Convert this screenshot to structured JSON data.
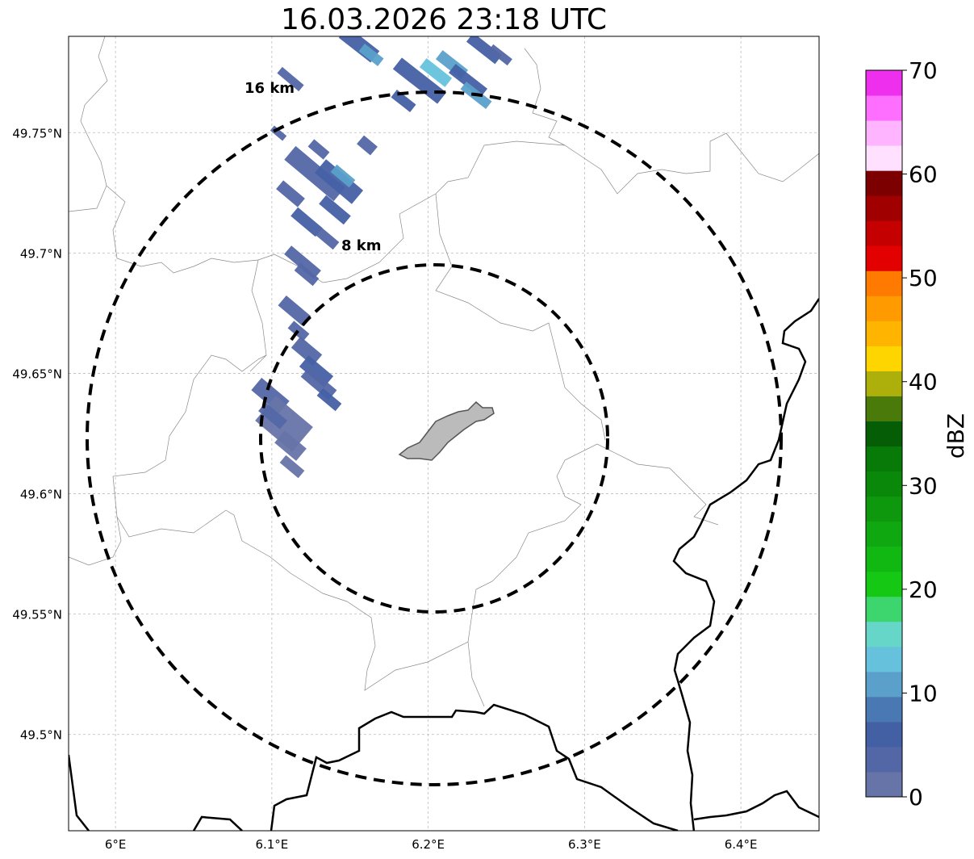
{
  "title": "16.03.2026 23:18 UTC",
  "map": {
    "lon_ticks": [
      {
        "value": 6.0,
        "label": "6°E"
      },
      {
        "value": 6.1,
        "label": "6.1°E"
      },
      {
        "value": 6.2,
        "label": "6.2°E"
      },
      {
        "value": 6.3,
        "label": "6.3°E"
      },
      {
        "value": 6.4,
        "label": "6.4°E"
      }
    ],
    "lat_ticks": [
      {
        "value": 49.75,
        "label": "49.75°N"
      },
      {
        "value": 49.7,
        "label": "49.7°N"
      },
      {
        "value": 49.65,
        "label": "49.65°N"
      },
      {
        "value": 49.6,
        "label": "49.6°N"
      },
      {
        "value": 49.55,
        "label": "49.55°N"
      },
      {
        "value": 49.5,
        "label": "49.5°N"
      }
    ],
    "lon_range": [
      5.97,
      6.45
    ],
    "lat_range": [
      49.46,
      49.79
    ],
    "gridlines": true,
    "range_rings": [
      {
        "radius_km": 8,
        "label": "8 km"
      },
      {
        "radius_km": 16,
        "label": "16 km"
      }
    ],
    "radar_center": {
      "lon": 6.202,
      "lat": 49.623
    }
  },
  "colorbar": {
    "label": "dBZ",
    "ticks": [
      "0",
      "10",
      "20",
      "30",
      "40",
      "50",
      "60",
      "70"
    ],
    "min": 0,
    "max": 70,
    "colors": [
      "#6674a8",
      "#5367a6",
      "#4460a5",
      "#4a78b2",
      "#5aa0ca",
      "#66c2dc",
      "#66d6c8",
      "#3dd66e",
      "#14c814",
      "#12b812",
      "#10a810",
      "#0e980e",
      "#0a880a",
      "#087a08",
      "#055e05",
      "#497a0a",
      "#adb00a",
      "#ffd500",
      "#ffb400",
      "#ff9a00",
      "#ff7a00",
      "#e30000",
      "#c40000",
      "#a00000",
      "#7d0000",
      "#ffe1ff",
      "#ffb4ff",
      "#ff6fff",
      "#ee30ee"
    ]
  },
  "chart_data": {
    "type": "map",
    "title": "16.03.2026 23:18 UTC",
    "legend": "colorbar right, dBZ 0–70",
    "echoes": [
      {
        "lon": 6.165,
        "lat": 49.785,
        "dbz": 6
      },
      {
        "lon": 6.2,
        "lat": 49.77,
        "dbz": 12
      },
      {
        "lon": 6.125,
        "lat": 49.725,
        "dbz": 4
      },
      {
        "lon": 6.125,
        "lat": 49.695,
        "dbz": 4
      },
      {
        "lon": 6.12,
        "lat": 49.66,
        "dbz": 3
      },
      {
        "lon": 6.11,
        "lat": 49.635,
        "dbz": 1
      }
    ]
  }
}
